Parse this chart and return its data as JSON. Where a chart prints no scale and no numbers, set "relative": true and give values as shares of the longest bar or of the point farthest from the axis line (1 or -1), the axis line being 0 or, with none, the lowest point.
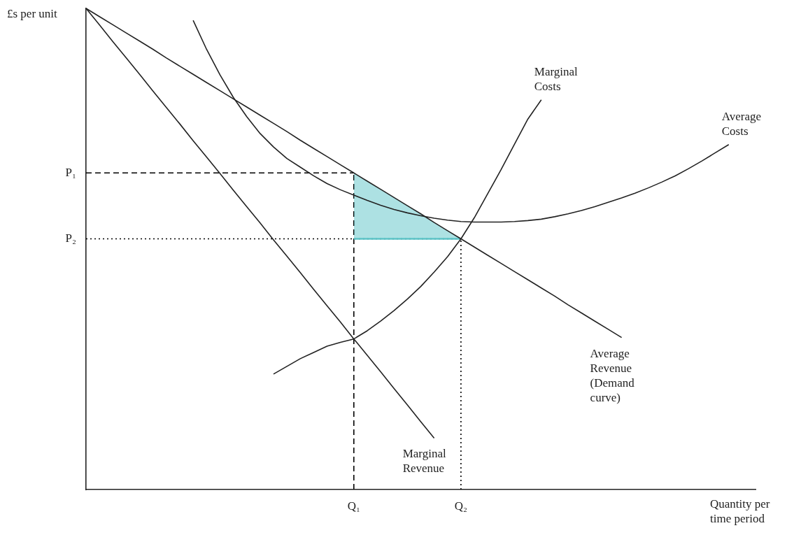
{
  "chart_data": {
    "type": "line",
    "relative": true,
    "ylabel": "£s per unit",
    "xlabel": "Quantity per time period",
    "categories": [
      null,
      null,
      null,
      null,
      null,
      null,
      null,
      null,
      null,
      null,
      null,
      null,
      null,
      null,
      null,
      null,
      null,
      null,
      null,
      null,
      "Q₁",
      null,
      null,
      null,
      null,
      null,
      null,
      null,
      "Q₂",
      null,
      null,
      null,
      null,
      null,
      null,
      null,
      null,
      null,
      null,
      null,
      null,
      null,
      null,
      null,
      null,
      null,
      null,
      null,
      null,
      null,
      null
    ],
    "ref_lines": [
      {
        "axis": "y",
        "value": 0.658,
        "label": "P₁",
        "line_style": "dashed",
        "color": "#000000"
      },
      {
        "axis": "y",
        "value": 0.521,
        "label": "P₂",
        "line_style": "dotted",
        "color": "#000000"
      },
      {
        "axis": "x",
        "value": "Q₁",
        "line_style": "dashed",
        "color": "#000000"
      },
      {
        "axis": "x",
        "value": "Q₂",
        "line_style": "dotted",
        "color": "#000000"
      }
    ],
    "series": [
      {
        "type": "line",
        "color": "#5cc3c7",
        "values": [
          null,
          null,
          null,
          null,
          null,
          null,
          null,
          null,
          null,
          null,
          null,
          null,
          null,
          null,
          null,
          null,
          null,
          null,
          null,
          null,
          0.521,
          0.521,
          0.521,
          0.521,
          0.521,
          0.521,
          0.521,
          0.521,
          0.521,
          null,
          null,
          null,
          null,
          null,
          null,
          null,
          null,
          null,
          null,
          null,
          null,
          null,
          null,
          null,
          null,
          null,
          null,
          null,
          null,
          null,
          null
        ],
        "upper": [
          null,
          null,
          null,
          null,
          null,
          null,
          null,
          null,
          null,
          null,
          null,
          null,
          null,
          null,
          null,
          null,
          null,
          null,
          null,
          null,
          0.658,
          0.641,
          0.624,
          0.607,
          0.59,
          0.573,
          0.555,
          0.538,
          0.521,
          null,
          null,
          null,
          null,
          null,
          null,
          null,
          null,
          null,
          null,
          null,
          null,
          null,
          null,
          null,
          null,
          null,
          null,
          null,
          null,
          null,
          null
        ],
        "lower": [
          null,
          null,
          null,
          null,
          null,
          null,
          null,
          null,
          null,
          null,
          null,
          null,
          null,
          null,
          null,
          null,
          null,
          null,
          null,
          null,
          0.521,
          0.521,
          0.521,
          0.521,
          0.521,
          0.521,
          0.521,
          0.521,
          0.521,
          null,
          null,
          null,
          null,
          null,
          null,
          null,
          null,
          null,
          null,
          null,
          null,
          null,
          null,
          null,
          null,
          null,
          null,
          null,
          null,
          null,
          null
        ]
      },
      {
        "name": "Average Revenue (Demand curve)",
        "color": "#222222",
        "values": [
          1,
          0.983,
          0.966,
          0.949,
          0.932,
          0.915,
          0.897,
          0.88,
          0.863,
          0.846,
          0.829,
          0.812,
          0.795,
          0.778,
          0.761,
          0.744,
          0.726,
          0.709,
          0.692,
          0.675,
          0.658,
          0.641,
          0.624,
          0.607,
          0.59,
          0.573,
          0.555,
          0.538,
          0.521,
          0.504,
          0.487,
          0.47,
          0.453,
          0.436,
          0.419,
          0.402,
          0.384,
          0.367,
          0.35,
          0.333,
          0.316,
          null,
          null,
          null,
          null,
          null,
          null,
          null,
          null,
          null,
          null
        ]
      },
      {
        "name": "Marginal Revenue",
        "color": "#222222",
        "values": [
          1,
          0.966,
          0.931,
          0.897,
          0.863,
          0.828,
          0.794,
          0.76,
          0.725,
          0.691,
          0.657,
          0.622,
          0.588,
          0.554,
          0.519,
          0.485,
          0.451,
          0.416,
          0.382,
          0.348,
          0.313,
          0.279,
          0.245,
          0.21,
          0.176,
          0.141,
          0.107,
          null,
          null,
          null,
          null,
          null,
          null,
          null,
          null,
          null,
          null,
          null,
          null,
          null,
          null,
          null,
          null,
          null,
          null,
          null,
          null,
          null,
          null,
          null,
          null
        ]
      },
      {
        "name": "Marginal Costs",
        "color": "#222222",
        "values": [
          null,
          null,
          null,
          null,
          null,
          null,
          null,
          null,
          null,
          null,
          null,
          null,
          null,
          null,
          0.24,
          0.256,
          0.272,
          0.285,
          0.298,
          0.306,
          0.313,
          0.33,
          0.35,
          0.372,
          0.396,
          0.422,
          0.452,
          0.484,
          0.521,
          0.565,
          0.615,
          0.665,
          0.718,
          0.77,
          0.81,
          null,
          null,
          null,
          null,
          null,
          null,
          null,
          null,
          null,
          null,
          null,
          null,
          null,
          null,
          null,
          null
        ]
      },
      {
        "name": "Average Costs",
        "color": "#222222",
        "values": [
          null,
          null,
          null,
          null,
          null,
          null,
          null,
          null,
          0.975,
          0.915,
          0.862,
          0.815,
          0.775,
          0.74,
          0.712,
          0.688,
          0.67,
          0.652,
          0.636,
          0.623,
          0.612,
          0.601,
          0.591,
          0.582,
          0.575,
          0.569,
          0.564,
          0.56,
          0.557,
          0.556,
          0.556,
          0.556,
          0.557,
          0.559,
          0.562,
          0.567,
          0.573,
          0.58,
          0.588,
          0.597,
          0.606,
          0.616,
          0.627,
          0.639,
          0.652,
          0.667,
          0.683,
          0.7,
          0.717,
          null,
          null
        ]
      }
    ]
  }
}
